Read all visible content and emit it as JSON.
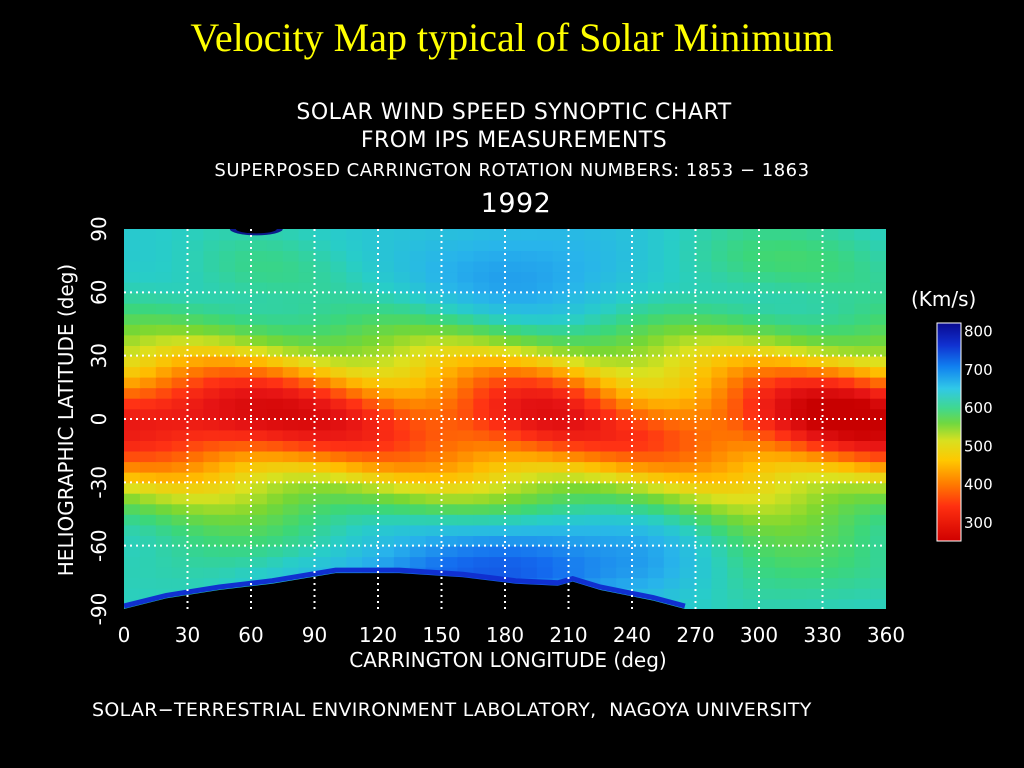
{
  "slide": {
    "title": "Velocity Map typical of Solar Minimum"
  },
  "chart_head": {
    "line1": "SOLAR WIND SPEED SYNOPTIC CHART",
    "line2": "FROM IPS MEASUREMENTS",
    "line3": "SUPERPOSED CARRINGTON ROTATION NUMBERS: 1853 − 1863",
    "year": "1992"
  },
  "credit": "SOLAR−TERRESTRIAL ENVIRONMENT LABOLATORY,  NAGOYA UNIVERSITY",
  "colors": {
    "title": "#ffff00",
    "background": "#000000",
    "grid": "#ffffff",
    "no_data": "#000000"
  },
  "chart_data": {
    "type": "heatmap",
    "xlabel": "CARRINGTON LONGITUDE (deg)",
    "ylabel": "HELIOGRAPHIC LATITUDE (deg)",
    "xlim": [
      0,
      360
    ],
    "ylim": [
      -90,
      90
    ],
    "x_ticks": [
      0,
      30,
      60,
      90,
      120,
      150,
      180,
      210,
      240,
      270,
      300,
      330,
      360
    ],
    "y_ticks": [
      -90,
      -60,
      -30,
      0,
      30,
      60,
      90
    ],
    "grid": true,
    "colorbar": {
      "title": "(Km/s)",
      "ticks": [
        800,
        700,
        600,
        500,
        400,
        300
      ],
      "range": [
        250,
        820
      ],
      "placement": "right"
    },
    "no_data_south_boundary": [
      {
        "lon": 0,
        "lat": -90
      },
      {
        "lon": 20,
        "lat": -85
      },
      {
        "lon": 45,
        "lat": -81
      },
      {
        "lon": 70,
        "lat": -78
      },
      {
        "lon": 100,
        "lat": -73
      },
      {
        "lon": 130,
        "lat": -73
      },
      {
        "lon": 160,
        "lat": -75
      },
      {
        "lon": 185,
        "lat": -78
      },
      {
        "lon": 205,
        "lat": -79
      },
      {
        "lon": 212,
        "lat": -77
      },
      {
        "lon": 225,
        "lat": -81
      },
      {
        "lon": 250,
        "lat": -86
      },
      {
        "lon": 265,
        "lat": -90
      }
    ],
    "no_data_north_patch": {
      "lon": [
        50,
        75
      ],
      "lat_min": 87
    }
  }
}
